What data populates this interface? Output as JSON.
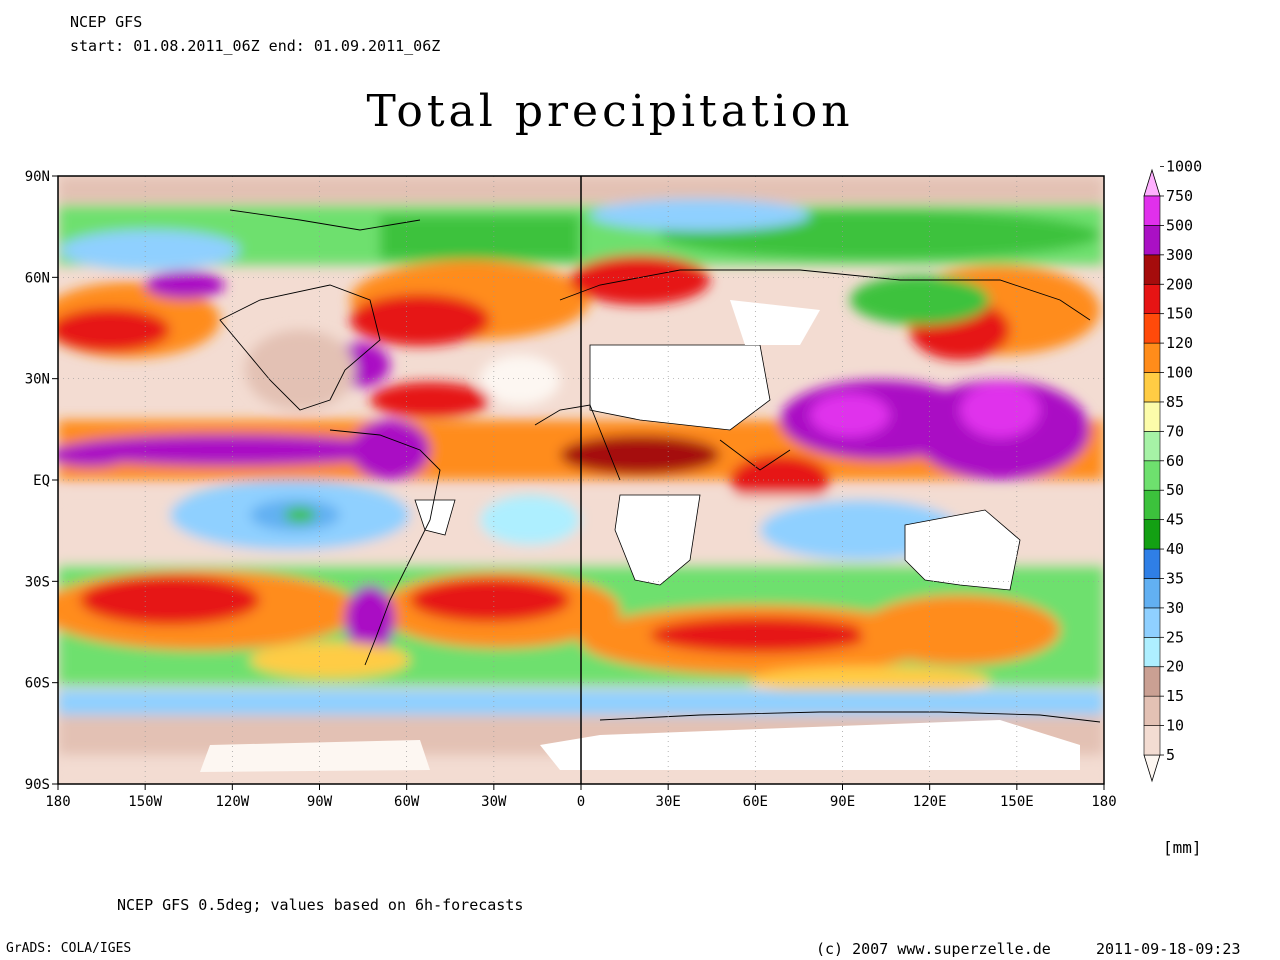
{
  "header": {
    "model": "NCEP GFS",
    "period": "start: 01.08.2011_06Z    end: 01.09.2011_06Z"
  },
  "title": "Total precipitation",
  "unit": "[mm]",
  "footnote": "NCEP GFS 0.5deg; values based on 6h-forecasts",
  "credits": {
    "software": "GrADS: COLA/IGES",
    "copyright": "(c) 2007 www.superzelle.de",
    "timestamp": "2011-09-18-09:23"
  },
  "map": {
    "lon_range": [
      -180,
      180
    ],
    "lat_range": [
      -90,
      90
    ],
    "lon_ticks": [
      "180",
      "150W",
      "120W",
      "90W",
      "60W",
      "30W",
      "0",
      "30E",
      "60E",
      "90E",
      "120E",
      "150E",
      "180"
    ],
    "lat_ticks": [
      "90N",
      "60N",
      "30N",
      "EQ",
      "30S",
      "60S",
      "90S"
    ]
  },
  "colorbar": {
    "levels": [
      "5",
      "10",
      "15",
      "20",
      "25",
      "30",
      "35",
      "40",
      "45",
      "50",
      "60",
      "70",
      "85",
      "100",
      "120",
      "150",
      "200",
      "300",
      "500",
      "750",
      "1000"
    ],
    "colors": [
      "#fdf7f2",
      "#f3dcd2",
      "#e3c1b4",
      "#caa093",
      "#aeefff",
      "#8fd0ff",
      "#62b0f2",
      "#2f7fe6",
      "#13a013",
      "#3cc23c",
      "#6ee06e",
      "#a6f2a6",
      "#fcfcaa",
      "#ffcc44",
      "#ff8c1a",
      "#ff4a0a",
      "#e61414",
      "#a50c0c",
      "#aa10c4",
      "#e030ec",
      "#ffb0ff"
    ]
  }
}
